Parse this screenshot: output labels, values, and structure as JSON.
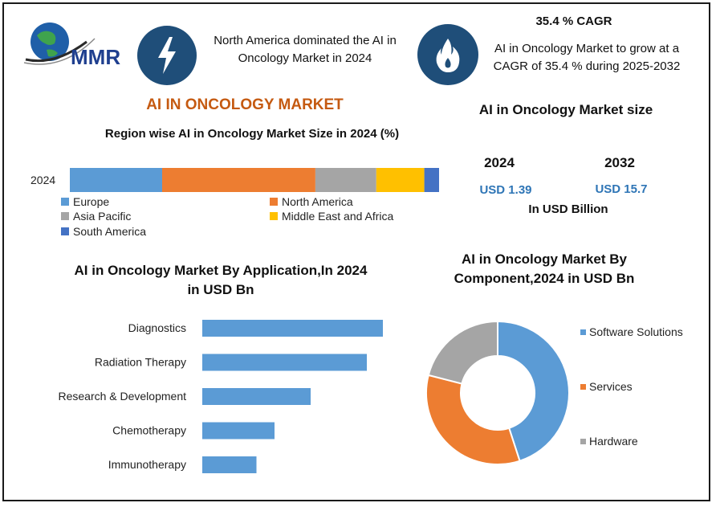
{
  "header": {
    "logo_text": "MMR",
    "left_text": "North America dominated the AI in Oncology Market in 2024",
    "cagr_title": "35.4 % CAGR",
    "right_text": "AI in Oncology Market to grow at a CAGR of 35.4 % during 2025-2032",
    "icon_left": "lightning-bolt-icon",
    "icon_right": "flame-icon"
  },
  "main_title": "AI IN ONCOLOGY MARKET",
  "size_panel": {
    "title": "AI in Oncology Market size",
    "year1": "2024",
    "year2": "2032",
    "value1": "USD 1.39",
    "value2": "USD 15.7",
    "unit": "In USD Billion"
  },
  "colors": {
    "icon_circle": "#1f4e79",
    "accent_orange": "#c55a11",
    "value_blue": "#2e75b6"
  },
  "chart_data": [
    {
      "type": "bar",
      "orientation": "horizontal-stacked",
      "title": "Region wise AI in Oncology Market Size in 2024 (%)",
      "categories": [
        "2024"
      ],
      "series": [
        {
          "name": "Europe",
          "values": [
            25
          ],
          "color": "#5b9bd5"
        },
        {
          "name": "North America",
          "values": [
            41.5
          ],
          "color": "#ed7d31"
        },
        {
          "name": "Asia Pacific",
          "values": [
            16.5
          ],
          "color": "#a5a5a5"
        },
        {
          "name": "Middle East and Africa",
          "values": [
            13
          ],
          "color": "#ffc000"
        },
        {
          "name": "South America",
          "values": [
            4
          ],
          "color": "#4472c4"
        }
      ],
      "legend": "bottom"
    },
    {
      "type": "bar",
      "orientation": "horizontal",
      "title_line1": "AI in Oncology Market By  Application,In 2024",
      "title_line2": "in USD Bn",
      "categories": [
        "Diagnostics",
        "Radiation Therapy",
        "Research & Development",
        "Chemotherapy",
        "Immunotherapy"
      ],
      "values": [
        0.45,
        0.41,
        0.27,
        0.18,
        0.135
      ],
      "xlim": [
        0,
        0.5
      ],
      "color": "#5b9bd5",
      "grid": false
    },
    {
      "type": "pie",
      "variant": "donut",
      "title_line1": "AI in Oncology Market By",
      "title_line2": "Component,2024 in USD Bn",
      "labels": [
        "Software Solutions",
        "Services",
        "Hardware"
      ],
      "values": [
        45,
        34,
        21
      ],
      "colors": [
        "#5b9bd5",
        "#ed7d31",
        "#a5a5a5"
      ],
      "legend": "right"
    }
  ]
}
